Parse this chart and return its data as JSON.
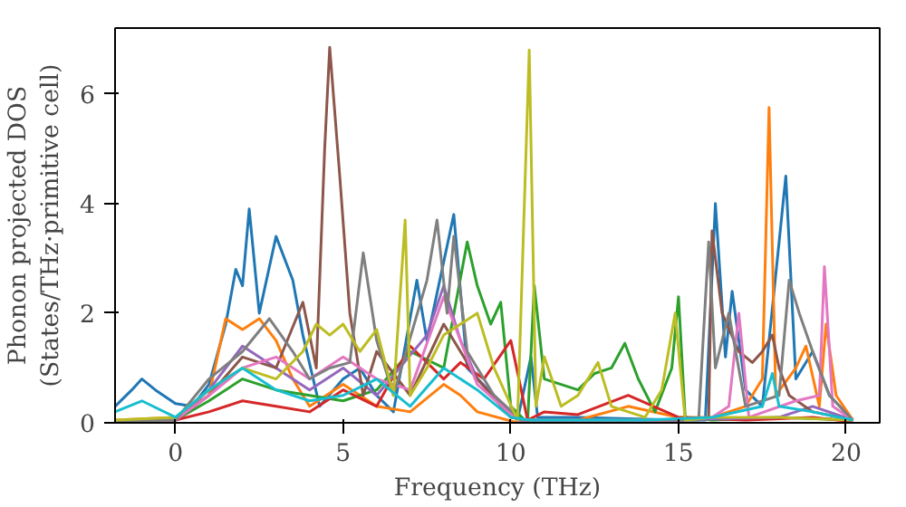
{
  "chart_data": {
    "type": "line",
    "xlabel": "Frequency (THz)",
    "ylabel": "Phonon projected DOS\n(States/THz·primitive cell)",
    "xlim": [
      -1.8,
      21
    ],
    "ylim": [
      0,
      7.2
    ],
    "xticks": [
      0,
      5,
      10,
      15,
      20
    ],
    "yticks": [
      0,
      2,
      4,
      6
    ],
    "grid": false,
    "marker": "none",
    "line_style": "solid",
    "series": [
      {
        "color": "#1f77b4",
        "x": [
          -1.8,
          -1.3,
          -1.0,
          -0.6,
          0,
          0.5,
          1.0,
          1.5,
          1.8,
          2.0,
          2.2,
          2.5,
          3.0,
          3.5,
          3.8,
          4.3,
          5,
          5.5,
          6,
          6.5,
          7.2,
          7.5,
          8.3,
          8.7,
          9.5,
          10.2,
          10.6,
          10.8,
          12,
          15,
          15.8,
          16.1,
          16.4,
          16.6,
          17,
          17.5,
          18.2,
          18.5,
          19,
          19.5,
          20.2
        ],
        "values": [
          0.3,
          0.6,
          0.8,
          0.6,
          0.35,
          0.3,
          0.7,
          1.8,
          2.8,
          2.5,
          3.9,
          2.0,
          3.4,
          2.6,
          1.6,
          0.3,
          0.8,
          1.0,
          0.5,
          0.2,
          2.6,
          1.5,
          3.8,
          1.0,
          0.5,
          0.05,
          1.2,
          0.1,
          0.1,
          0.05,
          0.05,
          4.0,
          1.2,
          2.4,
          0.6,
          0.3,
          4.5,
          0.8,
          1.3,
          0.5,
          0.05
        ]
      },
      {
        "color": "#ff7f0e",
        "x": [
          -1.8,
          0,
          1,
          1.5,
          2,
          2.5,
          3,
          3.5,
          4,
          5,
          6,
          7,
          8,
          8.5,
          9,
          10.2,
          12,
          13.5,
          15,
          16,
          17.0,
          17.5,
          17.7,
          17.9,
          18.5,
          18.8,
          19.2,
          19.4,
          19.7,
          20.2
        ],
        "values": [
          0.05,
          0.1,
          0.5,
          1.9,
          1.7,
          1.9,
          1.5,
          0.8,
          0.3,
          0.7,
          0.3,
          0.2,
          0.7,
          0.5,
          0.2,
          0,
          0.05,
          0.3,
          0.1,
          0.1,
          0.3,
          0.8,
          5.75,
          0.5,
          1.0,
          1.4,
          0.3,
          1.8,
          0.5,
          0.05
        ]
      },
      {
        "color": "#2ca02c",
        "x": [
          -1.8,
          0,
          1,
          2,
          3,
          4,
          5,
          6,
          7,
          8,
          8.7,
          9.0,
          9.4,
          9.7,
          10,
          10.5,
          10.7,
          11,
          12,
          12.5,
          13,
          13.4,
          13.8,
          14.3,
          14.8,
          15,
          15.2,
          16,
          18,
          20.2
        ],
        "values": [
          0.02,
          0.05,
          0.4,
          0.8,
          0.6,
          0.5,
          0.4,
          0.6,
          1.3,
          1.0,
          3.3,
          2.5,
          1.8,
          2.2,
          0.3,
          0,
          2.5,
          0.8,
          0.6,
          0.9,
          1.0,
          1.45,
          0.8,
          0.2,
          1.0,
          2.3,
          0.1,
          0.05,
          0.1,
          0.05
        ]
      },
      {
        "color": "#d62728",
        "x": [
          -1.8,
          0,
          1,
          2,
          3,
          4,
          5,
          6,
          7,
          8,
          8.5,
          9.2,
          10,
          10.5,
          11,
          12,
          13.5,
          15,
          17,
          19,
          20.2
        ],
        "values": [
          0.02,
          0.05,
          0.2,
          0.4,
          0.3,
          0.2,
          0.6,
          0.3,
          1.4,
          0.8,
          1.1,
          0.8,
          1.5,
          0.05,
          0.2,
          0.15,
          0.5,
          0.1,
          0.05,
          0.1,
          0.02
        ]
      },
      {
        "color": "#9467bd",
        "x": [
          -1.8,
          0,
          1,
          2,
          3,
          4,
          5,
          6,
          7.5,
          8,
          8.5,
          9,
          10.2,
          15,
          18,
          19,
          20.2
        ],
        "values": [
          0.02,
          0.05,
          0.6,
          1.4,
          1.0,
          0.6,
          1.0,
          0.5,
          1.6,
          2.5,
          1.5,
          0.8,
          0.05,
          0.05,
          0.1,
          0.3,
          0.05
        ]
      },
      {
        "color": "#8c564b",
        "x": [
          -1.8,
          0,
          1,
          2,
          3,
          3.8,
          4.2,
          4.45,
          4.6,
          4.9,
          5.2,
          5.6,
          6,
          7,
          8,
          9,
          10,
          10.5,
          15,
          15.9,
          16.0,
          16.3,
          16.8,
          17.2,
          17.5,
          17.8,
          18,
          18.3,
          19,
          20.2
        ],
        "values": [
          0.02,
          0.05,
          0.5,
          1.2,
          1.0,
          2.2,
          1.0,
          5.0,
          6.85,
          4.5,
          2.0,
          0.5,
          1.3,
          0.5,
          1.8,
          0.8,
          0.1,
          0.05,
          0.05,
          0.1,
          3.5,
          2.0,
          1.3,
          1.1,
          1.3,
          1.6,
          1.0,
          0.5,
          0.2,
          0.05
        ]
      },
      {
        "color": "#e377c2",
        "x": [
          -1.8,
          0,
          1,
          2,
          3,
          4,
          5,
          6,
          7,
          8,
          8.5,
          9,
          10.2,
          15,
          16,
          16.5,
          16.8,
          17.1,
          18.5,
          19.2,
          19.35,
          19.6,
          20.2
        ],
        "values": [
          0.02,
          0.05,
          0.5,
          1.0,
          1.2,
          0.8,
          1.2,
          0.8,
          0.6,
          2.3,
          1.5,
          0.7,
          0.05,
          0.05,
          0.1,
          0.3,
          2.0,
          0.1,
          0.4,
          0.5,
          2.85,
          0.3,
          0.05
        ]
      },
      {
        "color": "#7f7f7f",
        "x": [
          -1.8,
          0,
          1,
          2,
          2.8,
          3.5,
          4.0,
          4.6,
          5.2,
          5.6,
          6.0,
          6.5,
          7.5,
          7.8,
          8.1,
          8.3,
          8.7,
          9.5,
          10.3,
          15.6,
          15.9,
          16.1,
          16.5,
          17,
          18.0,
          18.3,
          18.6,
          19,
          19.5,
          20.2
        ],
        "values": [
          0.02,
          0.05,
          0.8,
          1.3,
          1.9,
          1.3,
          0.8,
          1.0,
          1.1,
          3.1,
          1.5,
          0.5,
          2.6,
          3.7,
          2.0,
          3.4,
          1.3,
          0.5,
          0.05,
          0.05,
          3.3,
          1.0,
          2.0,
          0.3,
          0.5,
          2.6,
          2.0,
          1.3,
          0.5,
          0.05
        ]
      },
      {
        "color": "#bcbd22",
        "x": [
          -1.8,
          0,
          1,
          2,
          3,
          3.8,
          4.2,
          4.6,
          5,
          5.5,
          6,
          6.5,
          6.85,
          7.0,
          7.5,
          8,
          9,
          9.5,
          10.2,
          10.55,
          10.75,
          11,
          11.5,
          12,
          12.6,
          13,
          14,
          14.5,
          14.9,
          15.2,
          16,
          18,
          20.2
        ],
        "values": [
          0.05,
          0.1,
          0.6,
          1.0,
          0.8,
          1.3,
          1.8,
          1.6,
          1.8,
          1.3,
          1.7,
          0.5,
          3.7,
          0.5,
          1.0,
          1.6,
          2.0,
          1.0,
          0.05,
          6.8,
          0.3,
          1.2,
          0.3,
          0.5,
          1.1,
          0.3,
          0.1,
          0.6,
          2.0,
          0.05,
          0.1,
          0.1,
          0.05
        ]
      },
      {
        "color": "#17becf",
        "x": [
          -1.8,
          -1,
          0,
          1,
          2,
          3,
          4,
          5,
          6,
          7,
          8,
          9,
          10,
          10.6,
          14,
          16,
          17.5,
          17.8,
          18,
          19,
          20.2
        ],
        "values": [
          0.2,
          0.4,
          0.1,
          0.6,
          1.0,
          0.6,
          0.4,
          0.5,
          0.8,
          0.3,
          1.0,
          0.6,
          0.1,
          0.05,
          0.05,
          0.1,
          0.3,
          0.9,
          0.3,
          0.2,
          0.05
        ]
      }
    ]
  }
}
